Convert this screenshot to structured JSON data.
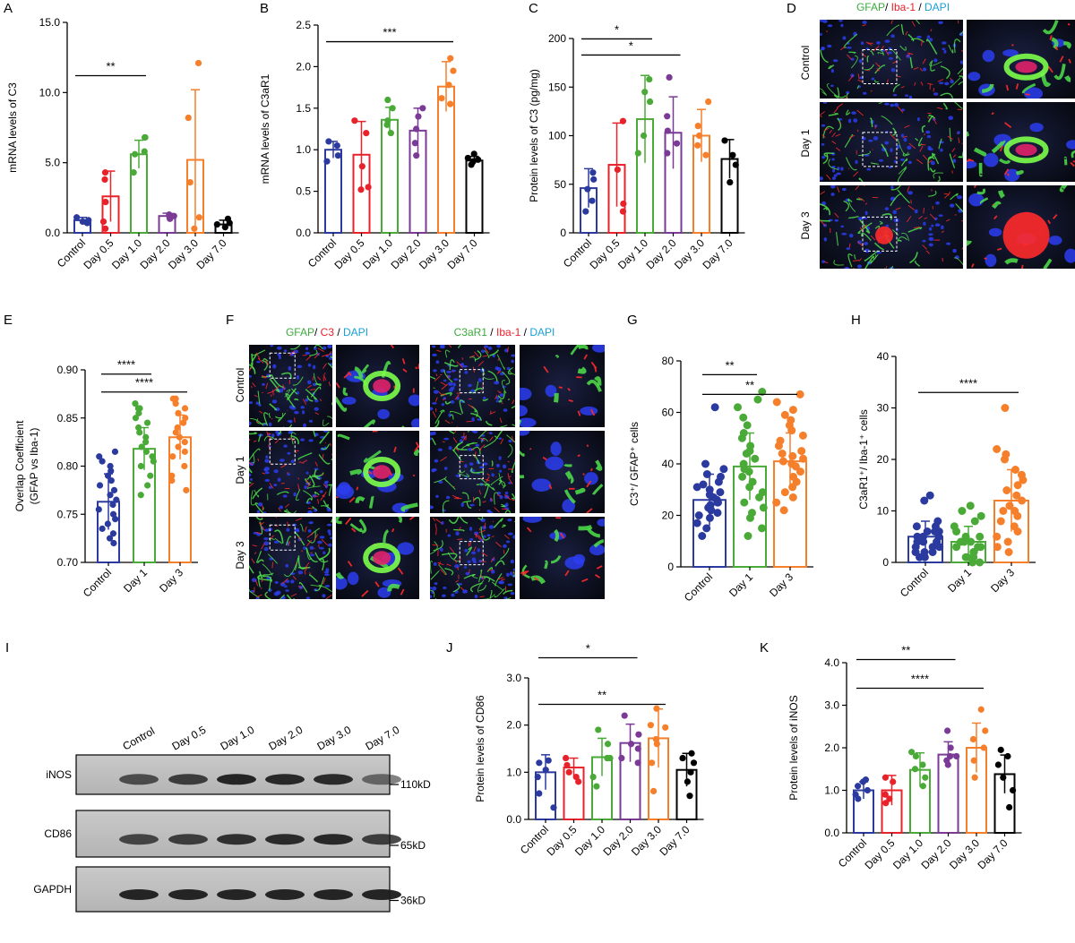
{
  "colors": {
    "Control": "#2b3a9e",
    "Day 0.5": "#e8222a",
    "Day 1.0": "#4aaa38",
    "Day 2.0": "#7a3a96",
    "Day 3.0": "#f57f2a",
    "Day 7.0": "#000000",
    "Day 1": "#4aaa38",
    "Day 3": "#f57f2a",
    "green_text": "#3cab3c",
    "red_text": "#e8222a",
    "blue_text": "#1aa0d8"
  },
  "chart_data": [
    {
      "id": "A",
      "panel_label": "A",
      "type": "bar",
      "categories": [
        "Control",
        "Day 0.5",
        "Day 1.0",
        "Day 2.0",
        "Day 3.0",
        "Day 7.0"
      ],
      "values": [
        0.9,
        2.6,
        5.6,
        1.2,
        5.2,
        0.6
      ],
      "errors": [
        0.2,
        1.8,
        1.0,
        0.2,
        5.0,
        0.3
      ],
      "points": [
        [
          0.7,
          0.9,
          1.1,
          0.8
        ],
        [
          0.3,
          0.8,
          2.2,
          3.8,
          4.3
        ],
        [
          4.3,
          5.6,
          5.8,
          6.8,
          6.8
        ],
        [
          1.0,
          1.2,
          1.3,
          1.2
        ],
        [
          0.3,
          1.1,
          3.6,
          8.2,
          12.1
        ],
        [
          0.4,
          0.6,
          0.7,
          1.0
        ]
      ],
      "title": "",
      "xlabel": "",
      "ylabel": "mRNA levels of C3",
      "ylim": [
        0,
        15
      ],
      "yticks": [
        "0.0",
        "5.0",
        "10.0",
        "15.0"
      ],
      "ytick_values": [
        0,
        5,
        10,
        15
      ],
      "significance": [
        {
          "from": 0,
          "to": 2,
          "text": "**"
        }
      ]
    },
    {
      "id": "B",
      "panel_label": "B",
      "type": "bar",
      "categories": [
        "Control",
        "Day 0.5",
        "Day 1.0",
        "Day 2.0",
        "Day 3.0",
        "Day 7.0"
      ],
      "values": [
        1.0,
        0.94,
        1.36,
        1.23,
        1.76,
        0.87
      ],
      "errors": [
        0.1,
        0.4,
        0.15,
        0.27,
        0.3,
        0.05
      ],
      "points": [
        [
          0.86,
          0.93,
          1.05,
          1.1
        ],
        [
          0.52,
          0.55,
          0.8,
          1.2,
          1.35
        ],
        [
          1.2,
          1.3,
          1.35,
          1.5,
          1.6
        ],
        [
          0.93,
          1.08,
          1.25,
          1.4,
          1.5
        ],
        [
          1.55,
          1.62,
          1.78,
          1.95,
          2.1
        ],
        [
          0.82,
          0.86,
          0.88,
          0.9,
          0.95
        ]
      ],
      "title": "",
      "xlabel": "",
      "ylabel": "mRNA levels of C3aR1",
      "ylim": [
        0,
        2.5
      ],
      "yticks": [
        "0.0",
        "0.5",
        "1.0",
        "1.5",
        "2.0",
        "2.5"
      ],
      "ytick_values": [
        0,
        0.5,
        1,
        1.5,
        2,
        2.5
      ],
      "significance": [
        {
          "from": 0,
          "to": 4,
          "text": "***"
        }
      ]
    },
    {
      "id": "C",
      "panel_label": "C",
      "type": "bar",
      "categories": [
        "Control",
        "Day 0.5",
        "Day 1.0",
        "Day 2.0",
        "Day 3.0",
        "Day 7.0"
      ],
      "values": [
        46,
        70,
        117,
        103,
        100,
        76
      ],
      "errors": [
        20,
        43,
        45,
        37,
        27,
        20
      ],
      "points": [
        [
          22,
          33,
          45,
          55,
          62
        ],
        [
          22,
          30,
          65,
          115
        ],
        [
          82,
          100,
          135,
          145,
          158
        ],
        [
          82,
          92,
          105,
          120,
          160
        ],
        [
          80,
          90,
          100,
          110,
          135
        ],
        [
          52,
          70,
          80,
          95
        ]
      ],
      "title": "",
      "xlabel": "",
      "ylabel": "Protein levels of C3 (pg/mg)",
      "ylim": [
        0,
        200
      ],
      "yticks": [
        "0",
        "50",
        "100",
        "150",
        "200"
      ],
      "ytick_values": [
        0,
        50,
        100,
        150,
        200
      ],
      "significance": [
        {
          "from": 0,
          "to": 2,
          "text": "*"
        },
        {
          "from": 0,
          "to": 3,
          "text": "*"
        }
      ]
    },
    {
      "id": "E",
      "panel_label": "E",
      "type": "bar",
      "categories": [
        "Control",
        "Day 1",
        "Day 3"
      ],
      "values": [
        0.763,
        0.818,
        0.83
      ],
      "errors": [
        0.029,
        0.022,
        0.023
      ],
      "points": [
        [
          0.72,
          0.725,
          0.73,
          0.735,
          0.74,
          0.745,
          0.75,
          0.755,
          0.76,
          0.765,
          0.77,
          0.775,
          0.78,
          0.785,
          0.79,
          0.795,
          0.8,
          0.805,
          0.81,
          0.815
        ],
        [
          0.77,
          0.78,
          0.79,
          0.8,
          0.805,
          0.81,
          0.815,
          0.82,
          0.825,
          0.83,
          0.835,
          0.84,
          0.845,
          0.85,
          0.855,
          0.86,
          0.86,
          0.865
        ],
        [
          0.775,
          0.785,
          0.79,
          0.8,
          0.81,
          0.815,
          0.82,
          0.825,
          0.83,
          0.835,
          0.84,
          0.845,
          0.85,
          0.855,
          0.86,
          0.865,
          0.87,
          0.87
        ]
      ],
      "title": "",
      "xlabel": "",
      "ylabel": "Overlap Coefficient",
      "ylabel2": "(GFAP vs Iba-1)",
      "ylim": [
        0.7,
        0.9
      ],
      "yticks": [
        "0.70",
        "0.75",
        "0.80",
        "0.85",
        "0.90"
      ],
      "ytick_values": [
        0.7,
        0.75,
        0.8,
        0.85,
        0.9
      ],
      "significance": [
        {
          "from": 0,
          "to": 1,
          "text": "****"
        },
        {
          "from": 0,
          "to": 2,
          "text": "****"
        }
      ]
    },
    {
      "id": "G",
      "panel_label": "G",
      "type": "bar",
      "categories": [
        "Control",
        "Day 1",
        "Day 3"
      ],
      "values": [
        26,
        39,
        41
      ],
      "errors": [
        10,
        13,
        11
      ],
      "points": [
        [
          12,
          15,
          17,
          19,
          20,
          21,
          22,
          23,
          24,
          25,
          25,
          26,
          27,
          28,
          29,
          30,
          31,
          32,
          33,
          35,
          36,
          38,
          40,
          62
        ],
        [
          12,
          15,
          19,
          21,
          23,
          25,
          27,
          29,
          31,
          33,
          35,
          37,
          38,
          40,
          42,
          44,
          45,
          47,
          50,
          52,
          55,
          58,
          62,
          65,
          68
        ],
        [
          22,
          25,
          27,
          29,
          31,
          33,
          35,
          37,
          39,
          40,
          41,
          42,
          43,
          44,
          45,
          47,
          49,
          51,
          53,
          55,
          57,
          59,
          61,
          64,
          67
        ]
      ],
      "title": "",
      "xlabel": "",
      "ylabel": "C3⁺/ GFAP⁺ cells",
      "ylim": [
        0,
        80
      ],
      "yticks": [
        "0",
        "20",
        "40",
        "60",
        "80"
      ],
      "ytick_values": [
        0,
        20,
        40,
        60,
        80
      ],
      "significance": [
        {
          "from": 0,
          "to": 1,
          "text": "**"
        },
        {
          "from": 0,
          "to": 2,
          "text": "**"
        }
      ]
    },
    {
      "id": "H",
      "panel_label": "H",
      "type": "bar",
      "categories": [
        "Control",
        "Day 1",
        "Day 3"
      ],
      "values": [
        5,
        4,
        12
      ],
      "errors": [
        3,
        3,
        6
      ],
      "points": [
        [
          1,
          1,
          2,
          2,
          2,
          3,
          3,
          3,
          4,
          4,
          4,
          5,
          5,
          5,
          6,
          6,
          6,
          7,
          7,
          8,
          12,
          13
        ],
        [
          0,
          0,
          1,
          1,
          1,
          2,
          2,
          2,
          3,
          3,
          3,
          4,
          4,
          4,
          5,
          5,
          6,
          7,
          8,
          9,
          10,
          11
        ],
        [
          2,
          3,
          4,
          5,
          6,
          7,
          8,
          9,
          10,
          10,
          11,
          12,
          13,
          14,
          15,
          16,
          17,
          18,
          20,
          21,
          22,
          30
        ]
      ],
      "title": "",
      "xlabel": "",
      "ylabel": "C3aR1⁺/ Iba-1⁺ cells",
      "ylim": [
        0,
        40
      ],
      "yticks": [
        "0",
        "10",
        "20",
        "30",
        "40"
      ],
      "ytick_values": [
        0,
        10,
        20,
        30,
        40
      ],
      "significance": [
        {
          "from": 0,
          "to": 2,
          "text": "****"
        }
      ]
    },
    {
      "id": "J",
      "panel_label": "J",
      "type": "bar",
      "categories": [
        "Control",
        "Day 0.5",
        "Day 1.0",
        "Day 2.0",
        "Day 3.0",
        "Day 7.0"
      ],
      "values": [
        1.0,
        1.1,
        1.32,
        1.62,
        1.72,
        1.05
      ],
      "errors": [
        0.37,
        0.2,
        0.4,
        0.4,
        0.62,
        0.35
      ],
      "points": [
        [
          0.25,
          0.55,
          0.9,
          1.05,
          1.2,
          1.25
        ],
        [
          0.8,
          0.9,
          1.0,
          1.15,
          1.3
        ],
        [
          0.7,
          0.9,
          1.3,
          1.3,
          1.6,
          1.9
        ],
        [
          1.2,
          1.3,
          1.5,
          1.6,
          1.8,
          2.2
        ],
        [
          0.6,
          1.2,
          1.6,
          1.7,
          1.95,
          2.0,
          2.35
        ],
        [
          0.5,
          0.8,
          1.0,
          1.2,
          1.3,
          1.4
        ]
      ],
      "title": "",
      "xlabel": "",
      "ylabel": "Protein levels of CD86",
      "ylim": [
        0,
        3.0
      ],
      "yticks": [
        "0.0",
        "1.0",
        "2.0",
        "3.0"
      ],
      "ytick_values": [
        0,
        1,
        2,
        3
      ],
      "significance": [
        {
          "from": 0,
          "to": 3,
          "text": "*"
        },
        {
          "from": 0,
          "to": 4,
          "text": "**"
        }
      ]
    },
    {
      "id": "K",
      "panel_label": "K",
      "type": "bar",
      "categories": [
        "Control",
        "Day 0.5",
        "Day 1.0",
        "Day 2.0",
        "Day 3.0",
        "Day 7.0"
      ],
      "values": [
        1.0,
        1.0,
        1.48,
        1.84,
        2.0,
        1.38
      ],
      "errors": [
        0.2,
        0.35,
        0.4,
        0.3,
        0.58,
        0.45
      ],
      "points": [
        [
          0.8,
          0.9,
          1.0,
          1.1,
          1.2,
          1.25
        ],
        [
          0.7,
          0.8,
          0.9,
          1.2,
          1.3
        ],
        [
          1.1,
          1.3,
          1.5,
          1.6,
          1.8,
          1.9
        ],
        [
          1.6,
          1.7,
          1.8,
          1.8,
          2.0,
          2.4
        ],
        [
          1.3,
          1.7,
          2.0,
          2.2,
          2.4,
          2.9
        ],
        [
          0.6,
          1.0,
          1.3,
          1.6,
          1.8,
          1.95
        ]
      ],
      "title": "",
      "xlabel": "",
      "ylabel": "Protein levels of iNOS",
      "ylim": [
        0,
        4.0
      ],
      "yticks": [
        "0.0",
        "1.0",
        "2.0",
        "3.0",
        "4.0"
      ],
      "ytick_values": [
        0,
        1,
        2,
        3,
        4
      ],
      "significance": [
        {
          "from": 0,
          "to": 3,
          "text": "**"
        },
        {
          "from": 0,
          "to": 4,
          "text": "****"
        }
      ]
    }
  ],
  "panel_D": {
    "label": "D",
    "header": [
      {
        "text": "GFAP",
        "color": "green"
      },
      {
        "text": "/ ",
        "color": "black"
      },
      {
        "text": "Iba-1",
        "color": "red"
      },
      {
        "text": " / ",
        "color": "black"
      },
      {
        "text": "DAPI",
        "color": "blue"
      }
    ],
    "rows": [
      "Control",
      "Day 1",
      "Day 3"
    ]
  },
  "panel_F": {
    "label": "F",
    "header_left": [
      {
        "text": "GFAP",
        "color": "green"
      },
      {
        "text": "/ ",
        "color": "black"
      },
      {
        "text": "C3",
        "color": "red"
      },
      {
        "text": " / ",
        "color": "black"
      },
      {
        "text": "DAPI",
        "color": "blue"
      }
    ],
    "header_right": [
      {
        "text": "C3aR1",
        "color": "green"
      },
      {
        "text": " / ",
        "color": "black"
      },
      {
        "text": "Iba-1",
        "color": "red"
      },
      {
        "text": " / ",
        "color": "black"
      },
      {
        "text": "DAPI",
        "color": "blue"
      }
    ],
    "rows": [
      "Control",
      "Day 1",
      "Day 3"
    ]
  },
  "panel_I": {
    "label": "I",
    "lanes": [
      "Control",
      "Day 0.5",
      "Day 1.0",
      "Day 2.0",
      "Day 3.0",
      "Day 7.0"
    ],
    "blots": [
      {
        "name": "iNOS",
        "mw": "110kD"
      },
      {
        "name": "CD86",
        "mw": "65kD"
      },
      {
        "name": "GAPDH",
        "mw": "36kD"
      }
    ]
  }
}
